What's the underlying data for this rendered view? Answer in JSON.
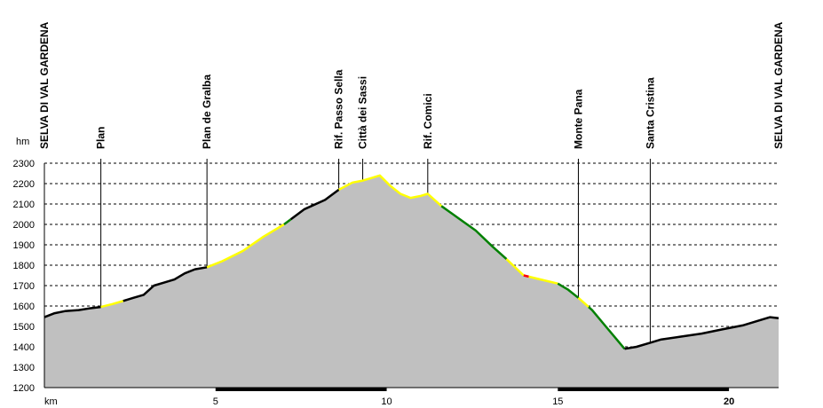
{
  "chart_data": {
    "type": "area",
    "xlabel": "km",
    "ylabel": "hm",
    "xlim": [
      0,
      21.45
    ],
    "ylim": [
      1200,
      2300
    ],
    "x_ticks": [
      {
        "value": 5,
        "label": "5",
        "bold": false
      },
      {
        "value": 10,
        "label": "10",
        "bold": false
      },
      {
        "value": 15,
        "label": "15",
        "bold": false
      },
      {
        "value": 20,
        "label": "20",
        "bold": true
      }
    ],
    "y_ticks": [
      {
        "value": 2300,
        "label": "2300"
      },
      {
        "value": 2200,
        "label": "2200"
      },
      {
        "value": 2100,
        "label": "2100"
      },
      {
        "value": 2000,
        "label": "2000"
      },
      {
        "value": 1900,
        "label": "1900"
      },
      {
        "value": 1800,
        "label": "1800"
      },
      {
        "value": 1700,
        "label": "1700"
      },
      {
        "value": 1600,
        "label": "1600"
      },
      {
        "value": 1500,
        "label": "1500"
      },
      {
        "value": 1400,
        "label": "1400"
      },
      {
        "value": 1300,
        "label": "1300"
      },
      {
        "value": 1200,
        "label": "1200"
      }
    ],
    "grid": true,
    "scale_bar_segments": [
      [
        0,
        5,
        "white"
      ],
      [
        5,
        10,
        "black"
      ],
      [
        10,
        15,
        "white"
      ],
      [
        15,
        20,
        "black"
      ],
      [
        20,
        21.45,
        "white"
      ]
    ],
    "fill_color": "#c0c0c0",
    "segment_colors": {
      "black": "#000000",
      "yellow": "#ffff00",
      "green": "#008000",
      "red": "#ff0000"
    },
    "places": [
      {
        "name": "SELVA DI VAL GARDENA",
        "km": 0
      },
      {
        "name": "Plan",
        "km": 1.65
      },
      {
        "name": "Plan de Gralba",
        "km": 4.75
      },
      {
        "name": "Rif. Passo Sella",
        "km": 8.6
      },
      {
        "name": "Città dei Sassi",
        "km": 9.3
      },
      {
        "name": "Rif. Comici",
        "km": 11.2
      },
      {
        "name": "Monte Pana",
        "km": 15.6
      },
      {
        "name": "Santa Cristina",
        "km": 17.7
      },
      {
        "name": "SELVA DI VAL GARDENA",
        "km": 21.45
      }
    ],
    "profile": [
      [
        0,
        1545
      ],
      [
        0.3,
        1565
      ],
      [
        0.6,
        1575
      ],
      [
        1.0,
        1580
      ],
      [
        1.3,
        1588
      ],
      [
        1.65,
        1595
      ],
      [
        2.0,
        1610
      ],
      [
        2.3,
        1625
      ],
      [
        2.6,
        1640
      ],
      [
        2.9,
        1655
      ],
      [
        3.2,
        1700
      ],
      [
        3.5,
        1715
      ],
      [
        3.8,
        1730
      ],
      [
        4.1,
        1760
      ],
      [
        4.4,
        1780
      ],
      [
        4.75,
        1790
      ],
      [
        5.2,
        1820
      ],
      [
        5.8,
        1870
      ],
      [
        6.4,
        1940
      ],
      [
        7.0,
        2000
      ],
      [
        7.6,
        2075
      ],
      [
        8.2,
        2120
      ],
      [
        8.6,
        2170
      ],
      [
        9.0,
        2205
      ],
      [
        9.3,
        2215
      ],
      [
        9.5,
        2225
      ],
      [
        9.8,
        2240
      ],
      [
        10.1,
        2190
      ],
      [
        10.4,
        2150
      ],
      [
        10.7,
        2130
      ],
      [
        11.0,
        2140
      ],
      [
        11.2,
        2150
      ],
      [
        11.6,
        2090
      ],
      [
        12.1,
        2030
      ],
      [
        12.6,
        1970
      ],
      [
        13.1,
        1890
      ],
      [
        13.5,
        1830
      ],
      [
        14.0,
        1750
      ],
      [
        14.5,
        1730
      ],
      [
        15.0,
        1710
      ],
      [
        15.3,
        1680
      ],
      [
        15.6,
        1640
      ],
      [
        16.0,
        1580
      ],
      [
        16.4,
        1500
      ],
      [
        16.7,
        1440
      ],
      [
        16.95,
        1390
      ],
      [
        17.3,
        1400
      ],
      [
        17.7,
        1420
      ],
      [
        18.0,
        1435
      ],
      [
        18.6,
        1450
      ],
      [
        19.2,
        1465
      ],
      [
        19.8,
        1485
      ],
      [
        20.4,
        1505
      ],
      [
        20.9,
        1530
      ],
      [
        21.2,
        1545
      ],
      [
        21.45,
        1540
      ]
    ],
    "colored_segments": [
      {
        "from": 0,
        "to": 1.65,
        "color": "black"
      },
      {
        "from": 1.65,
        "to": 2.3,
        "color": "yellow"
      },
      {
        "from": 2.3,
        "to": 4.75,
        "color": "black"
      },
      {
        "from": 4.75,
        "to": 7.0,
        "color": "yellow"
      },
      {
        "from": 7.0,
        "to": 7.2,
        "color": "green"
      },
      {
        "from": 7.2,
        "to": 8.6,
        "color": "black"
      },
      {
        "from": 8.6,
        "to": 11.6,
        "color": "yellow"
      },
      {
        "from": 11.6,
        "to": 13.5,
        "color": "green"
      },
      {
        "from": 13.5,
        "to": 14.0,
        "color": "yellow"
      },
      {
        "from": 14.0,
        "to": 14.15,
        "color": "red"
      },
      {
        "from": 14.15,
        "to": 15.0,
        "color": "yellow"
      },
      {
        "from": 15.0,
        "to": 15.6,
        "color": "green"
      },
      {
        "from": 15.6,
        "to": 15.9,
        "color": "yellow"
      },
      {
        "from": 15.9,
        "to": 16.95,
        "color": "green"
      },
      {
        "from": 16.95,
        "to": 21.45,
        "color": "black"
      }
    ]
  }
}
